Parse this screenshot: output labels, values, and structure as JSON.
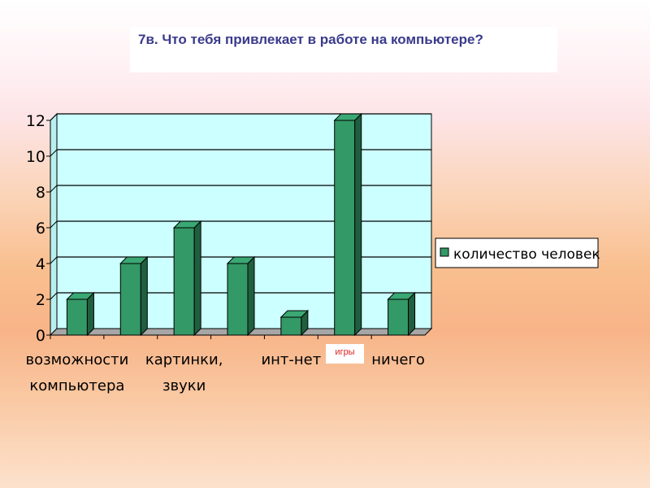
{
  "header": {
    "title": "7в. Что тебя привлекает в работе на компьютере?"
  },
  "callout": {
    "text": "игры"
  },
  "colors": {
    "plot_bg": "#ccffff",
    "bar_front": "#339966",
    "bar_top": "#3aa874",
    "bar_side": "#1f5f3f",
    "floor": "#a6a6a6"
  },
  "chart_data": {
    "type": "bar",
    "title": "",
    "xlabel": "",
    "ylabel": "",
    "ylim": [
      0,
      12
    ],
    "yticks": [
      "0",
      "2",
      "4",
      "6",
      "8",
      "10",
      "12"
    ],
    "categories": [
      {
        "line1": "возможности",
        "line2": "компьютера"
      },
      {
        "line1": "",
        "line2": ""
      },
      {
        "line1": "картинки,",
        "line2": "звуки"
      },
      {
        "line1": "",
        "line2": ""
      },
      {
        "line1": "инт-нет",
        "line2": ""
      },
      {
        "line1": "",
        "line2": ""
      },
      {
        "line1": "ничего",
        "line2": ""
      }
    ],
    "series": [
      {
        "name": "количество человек",
        "values": [
          2,
          4,
          6,
          4,
          1,
          12,
          2
        ]
      }
    ],
    "legend_position": "right",
    "grid": true
  }
}
